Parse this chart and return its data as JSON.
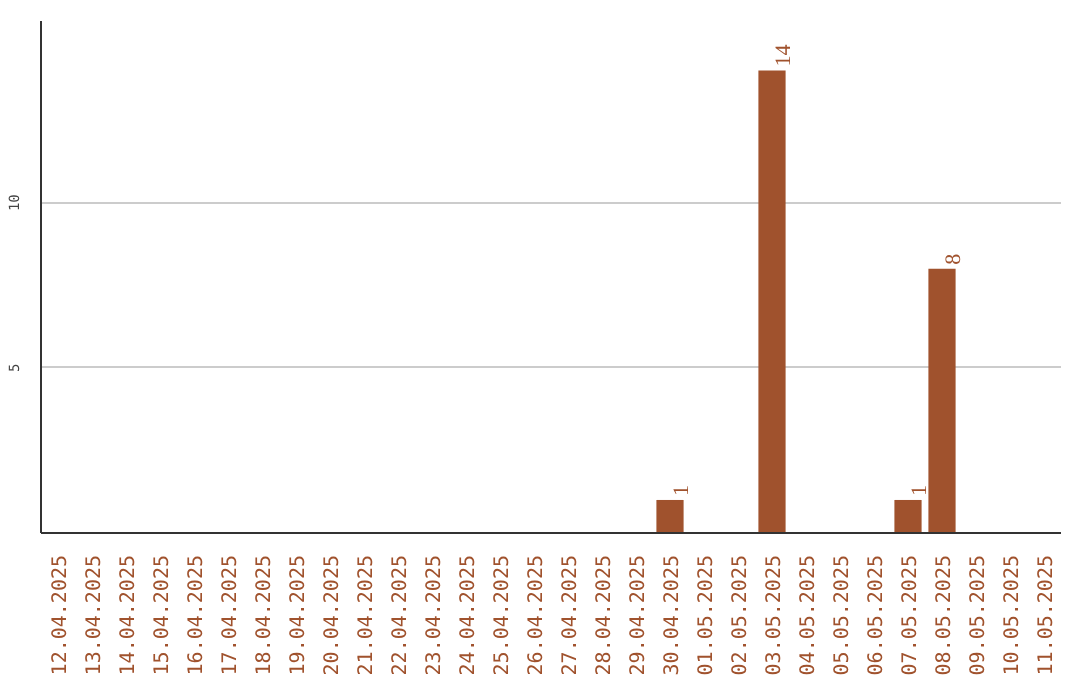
{
  "chart_data": {
    "type": "bar",
    "categories": [
      "12.04.2025",
      "13.04.2025",
      "14.04.2025",
      "15.04.2025",
      "16.04.2025",
      "17.04.2025",
      "18.04.2025",
      "19.04.2025",
      "20.04.2025",
      "21.04.2025",
      "22.04.2025",
      "23.04.2025",
      "24.04.2025",
      "25.04.2025",
      "26.04.2025",
      "27.04.2025",
      "28.04.2025",
      "29.04.2025",
      "30.04.2025",
      "01.05.2025",
      "02.05.2025",
      "03.05.2025",
      "04.05.2025",
      "05.05.2025",
      "06.05.2025",
      "07.05.2025",
      "08.05.2025",
      "09.05.2025",
      "10.05.2025",
      "11.05.2025"
    ],
    "values": [
      0,
      0,
      0,
      0,
      0,
      0,
      0,
      0,
      0,
      0,
      0,
      0,
      0,
      0,
      0,
      0,
      0,
      0,
      1,
      0,
      0,
      14,
      0,
      0,
      0,
      1,
      8,
      0,
      0,
      0
    ],
    "value_labels": [
      null,
      null,
      null,
      null,
      null,
      null,
      null,
      null,
      null,
      null,
      null,
      null,
      null,
      null,
      null,
      null,
      null,
      null,
      "1",
      null,
      null,
      "14",
      null,
      null,
      null,
      "1",
      "8",
      null,
      null,
      null
    ],
    "color": "#a0522d",
    "ylim": [
      0,
      15.5
    ],
    "yticks": [
      5,
      10
    ],
    "grid": "y"
  }
}
